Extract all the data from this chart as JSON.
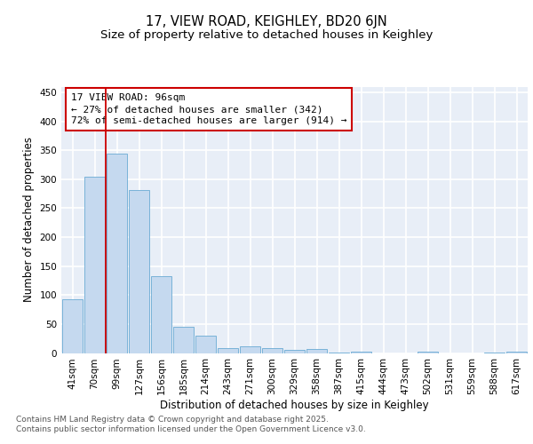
{
  "title": "17, VIEW ROAD, KEIGHLEY, BD20 6JN",
  "subtitle": "Size of property relative to detached houses in Keighley",
  "xlabel": "Distribution of detached houses by size in Keighley",
  "ylabel": "Number of detached properties",
  "categories": [
    "41sqm",
    "70sqm",
    "99sqm",
    "127sqm",
    "156sqm",
    "185sqm",
    "214sqm",
    "243sqm",
    "271sqm",
    "300sqm",
    "329sqm",
    "358sqm",
    "387sqm",
    "415sqm",
    "444sqm",
    "473sqm",
    "502sqm",
    "531sqm",
    "559sqm",
    "588sqm",
    "617sqm"
  ],
  "values": [
    93,
    305,
    345,
    281,
    132,
    46,
    30,
    9,
    12,
    8,
    6,
    7,
    1,
    2,
    0,
    0,
    2,
    0,
    0,
    1,
    3
  ],
  "bar_color": "#c5d9ef",
  "bar_edge_color": "#6aaad4",
  "vline_x": 1.5,
  "vline_color": "#cc0000",
  "annotation_text": "17 VIEW ROAD: 96sqm\n← 27% of detached houses are smaller (342)\n72% of semi-detached houses are larger (914) →",
  "annotation_box_color": "#cc0000",
  "ylim": [
    0,
    460
  ],
  "yticks": [
    0,
    50,
    100,
    150,
    200,
    250,
    300,
    350,
    400,
    450
  ],
  "background_color": "#e8eef7",
  "grid_color": "#ffffff",
  "footnote": "Contains HM Land Registry data © Crown copyright and database right 2025.\nContains public sector information licensed under the Open Government Licence v3.0.",
  "title_fontsize": 10.5,
  "subtitle_fontsize": 9.5,
  "axis_label_fontsize": 8.5,
  "tick_fontsize": 7.5,
  "annotation_fontsize": 8,
  "footnote_fontsize": 6.5
}
